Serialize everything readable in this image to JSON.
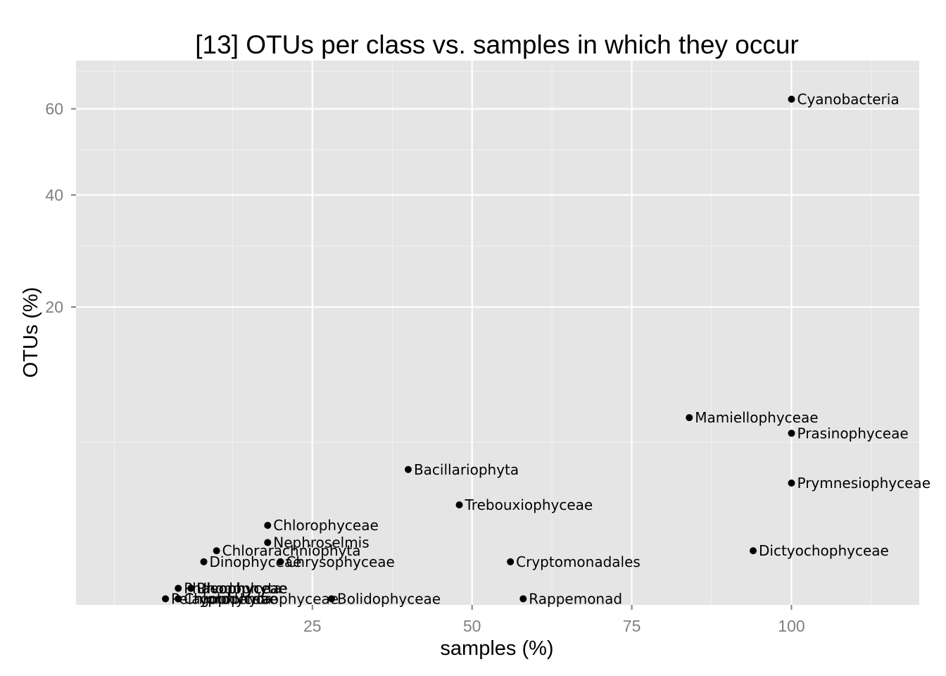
{
  "chart_data": {
    "type": "scatter",
    "title": "[13] OTUs per class vs. samples in which they occur",
    "xlabel": "samples (%)",
    "ylabel": "OTUs (%)",
    "y_scale": "sqrt",
    "xlim": [
      -12,
      120
    ],
    "ylim": [
      -0.2,
      73
    ],
    "x_ticks": [
      25,
      50,
      75,
      100
    ],
    "x_tick_labels": [
      "25",
      "50",
      "75",
      "100"
    ],
    "x_minor_ticks": [
      -6,
      12.5,
      37.5,
      62.5,
      87.5,
      112.5
    ],
    "y_ticks": [
      20,
      40,
      60
    ],
    "y_tick_labels": [
      "20",
      "40",
      "60"
    ],
    "y_minor_ticks": [
      5,
      30,
      50,
      70
    ],
    "grid": true,
    "background": "#e5e5e5",
    "point_color": "#000000",
    "points": [
      {
        "label": "Cyanobacteria",
        "x": 100,
        "y": 62.5
      },
      {
        "label": "Mamiellophyceae",
        "x": 84,
        "y": 7.0
      },
      {
        "label": "Prasinophyceae",
        "x": 100,
        "y": 5.7
      },
      {
        "label": "Bacillariophyta",
        "x": 40,
        "y": 3.2
      },
      {
        "label": "Prymnesiophyceae",
        "x": 100,
        "y": 2.45
      },
      {
        "label": "Trebouxiophyceae",
        "x": 48,
        "y": 1.45
      },
      {
        "label": "Chlorophyceae",
        "x": 18,
        "y": 0.75
      },
      {
        "label": "Nephroselmis",
        "x": 18,
        "y": 0.34
      },
      {
        "label": "Chlorarachniophyta",
        "x": 10,
        "y": 0.2
      },
      {
        "label": "Dictyochophyceae",
        "x": 94,
        "y": 0.2
      },
      {
        "label": "Dinophyceae",
        "x": 8,
        "y": 0.07
      },
      {
        "label": "Chrysophyceae",
        "x": 20,
        "y": 0.07
      },
      {
        "label": "Cryptomonadales",
        "x": 56,
        "y": 0.07
      },
      {
        "label": "Phaeophyceae",
        "x": 4,
        "y": -0.03
      },
      {
        "label": "Rhodophyta",
        "x": 6,
        "y": -0.03
      },
      {
        "label": "Ulvophyceae",
        "x": 6,
        "y": -0.03
      },
      {
        "label": "Pelagophyceae",
        "x": 2,
        "y": -0.12
      },
      {
        "label": "Cryptophyta",
        "x": 4,
        "y": -0.12
      },
      {
        "label": "Chlorodendrophyceae",
        "x": 4,
        "y": -0.12
      },
      {
        "label": "Bolidophyceae",
        "x": 28,
        "y": -0.12
      },
      {
        "label": "Rappemonad",
        "x": 58,
        "y": -0.12
      }
    ]
  }
}
